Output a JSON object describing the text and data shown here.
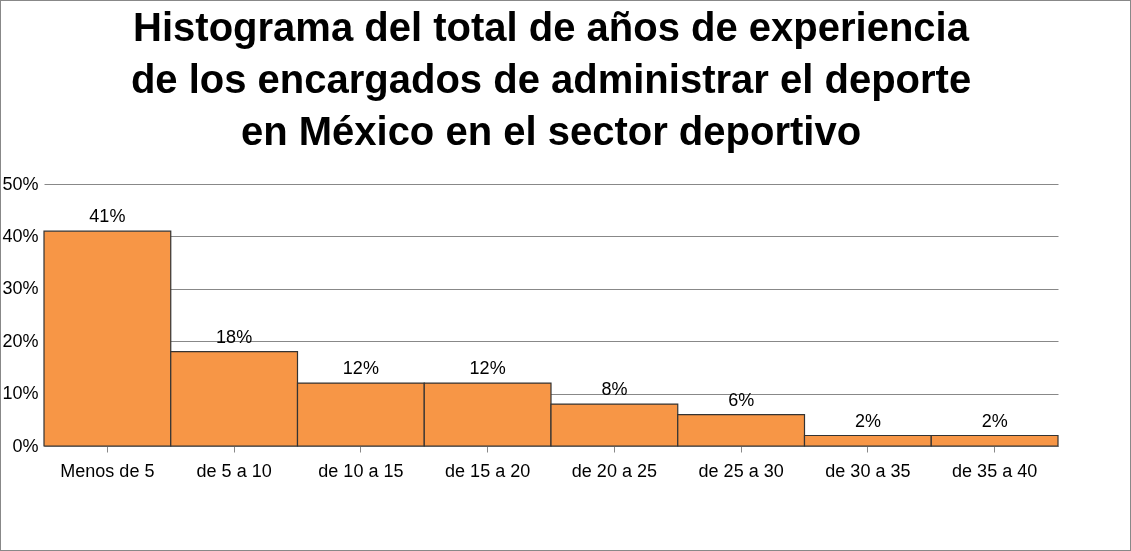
{
  "chart_data": {
    "type": "bar",
    "title": "Histograma del total de años de experiencia de los encargados de administrar el deporte en México en el sector deportivo",
    "categories": [
      "Menos de 5",
      "de 5 a 10",
      "de 10 a 15",
      "de 15 a 20",
      "de 20 a 25",
      "de 25 a 30",
      "de 30 a 35",
      "de 35 a 40"
    ],
    "values": [
      41,
      18,
      12,
      12,
      8,
      6,
      2,
      2
    ],
    "value_labels": [
      "41%",
      "18%",
      "12%",
      "12%",
      "8%",
      "6%",
      "2%",
      "2%"
    ],
    "color": "#f79646",
    "ylim": [
      0,
      50
    ],
    "yticks": [
      {
        "value": 0,
        "label": "0%"
      },
      {
        "value": 10,
        "label": "10%"
      },
      {
        "value": 20,
        "label": "20%"
      },
      {
        "value": 30,
        "label": "30%"
      },
      {
        "value": 40,
        "label": "40%"
      },
      {
        "value": 50,
        "label": "50%"
      }
    ],
    "grid": "y"
  }
}
